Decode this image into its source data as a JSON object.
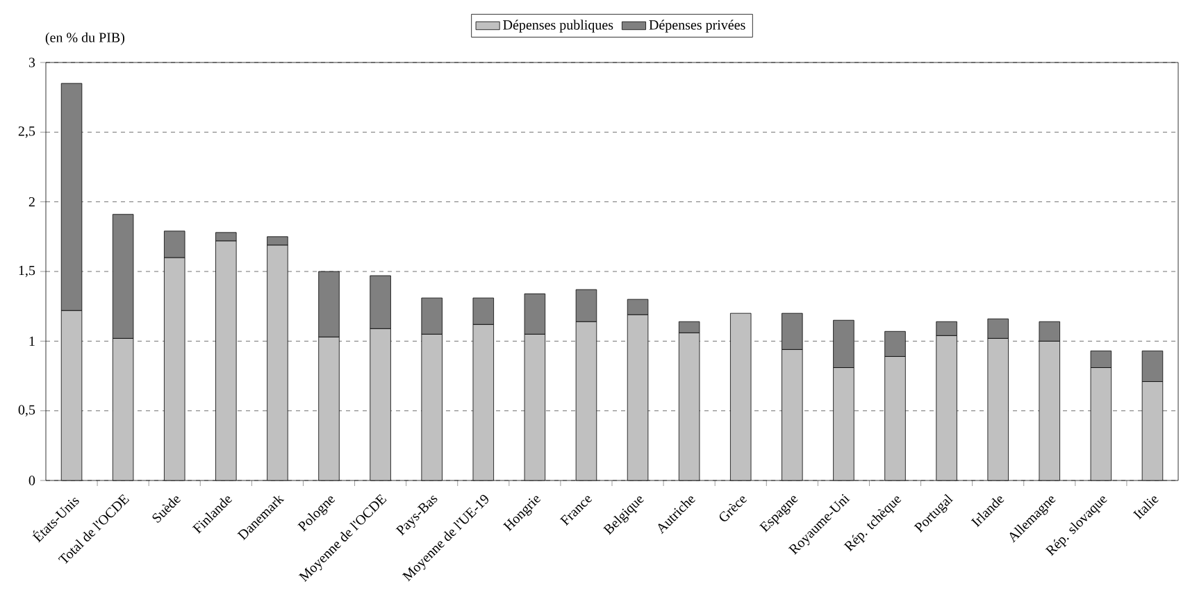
{
  "chart_data": {
    "type": "bar",
    "stacked": true,
    "ylabel": "(en % du PIB)",
    "categories": [
      "États-Unis",
      "Total de l'OCDE",
      "Suède",
      "Finlande",
      "Danemark",
      "Pologne",
      "Moyenne de l'OCDE",
      "Pays-Bas",
      "Moyenne de l'UE-19",
      "Hongrie",
      "France",
      "Belgique",
      "Autriche",
      "Grèce",
      "Espagne",
      "Royaume-Uni",
      "Rép. tchèque",
      "Portugal",
      "Irlande",
      "Allemagne",
      "Rép. slovaque",
      "Italie"
    ],
    "series": [
      {
        "name": "Dépenses publiques",
        "color": "#c0c0c0",
        "values": [
          1.22,
          1.02,
          1.6,
          1.72,
          1.69,
          1.03,
          1.09,
          1.05,
          1.12,
          1.05,
          1.14,
          1.19,
          1.06,
          1.2,
          0.94,
          0.81,
          0.89,
          1.04,
          1.02,
          1.0,
          0.81,
          0.71
        ]
      },
      {
        "name": "Dépenses privées",
        "color": "#808080",
        "values": [
          1.63,
          0.89,
          0.19,
          0.06,
          0.06,
          0.47,
          0.38,
          0.26,
          0.19,
          0.29,
          0.23,
          0.11,
          0.08,
          null,
          0.26,
          0.34,
          0.18,
          0.1,
          0.14,
          0.14,
          0.12,
          0.22
        ]
      }
    ],
    "ylim": [
      0,
      3
    ],
    "yticks": [
      0,
      {
        "value": 0.5,
        "label": "0,5"
      },
      1,
      {
        "value": 1.5,
        "label": "1,5"
      },
      2,
      {
        "value": 2.5,
        "label": "2,5"
      },
      3
    ],
    "grid": "y",
    "legend": "top"
  }
}
